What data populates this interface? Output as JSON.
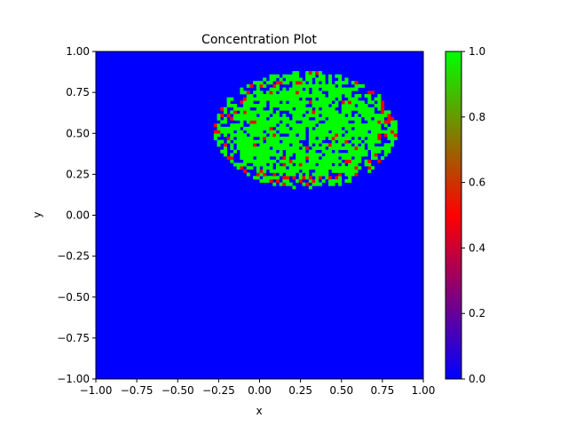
{
  "chart_data": {
    "type": "heatmap",
    "title": "Concentration Plot",
    "xlabel": "x",
    "ylabel": "y",
    "xlim": [
      -1.0,
      1.0
    ],
    "ylim": [
      -1.0,
      1.0
    ],
    "xticks": [
      "−1.00",
      "−0.75",
      "−0.50",
      "−0.25",
      "0.00",
      "0.25",
      "0.50",
      "0.75",
      "1.00"
    ],
    "xtick_values": [
      -1.0,
      -0.75,
      -0.5,
      -0.25,
      0.0,
      0.25,
      0.5,
      0.75,
      1.0
    ],
    "yticks": [
      "−1.00",
      "−0.75",
      "−0.50",
      "−0.25",
      "0.00",
      "0.25",
      "0.50",
      "0.75",
      "1.00"
    ],
    "ytick_values": [
      -1.0,
      -0.75,
      -0.5,
      -0.25,
      0.0,
      0.25,
      0.5,
      0.75,
      1.0
    ],
    "background_value": 0.0,
    "grid": false,
    "region": {
      "description": "cluster of high concentration cells",
      "center": [
        0.28,
        0.52
      ],
      "radius_x": 0.53,
      "radius_y": 0.34,
      "value": 1.0
    },
    "colorbar": {
      "range": [
        0.0,
        1.0
      ],
      "ticks": [
        "0.0",
        "0.2",
        "0.4",
        "0.6",
        "0.8",
        "1.0"
      ],
      "tick_values": [
        0.0,
        0.2,
        0.4,
        0.6,
        0.8,
        1.0
      ],
      "colormap": "brg",
      "colors": {
        "low": "#0000ff",
        "mid": "#ff0000",
        "high": "#00ff00"
      }
    }
  }
}
